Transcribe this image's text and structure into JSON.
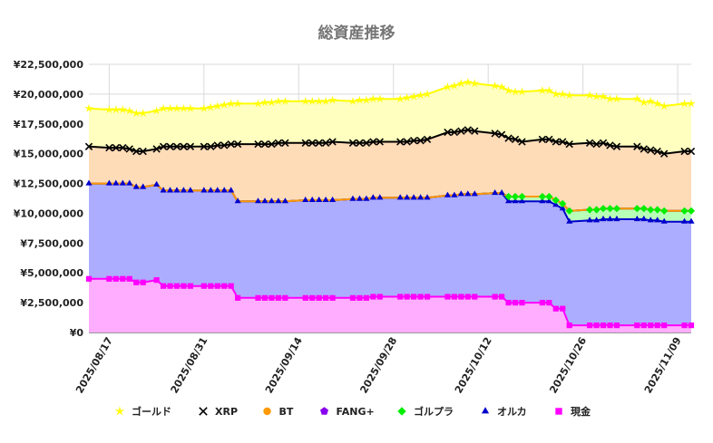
{
  "chart_data": {
    "type": "area",
    "title": "総資産推移",
    "xlabel": "",
    "ylabel": "",
    "ylim": [
      0,
      22500000
    ],
    "yticks": [
      0,
      2500000,
      5000000,
      7500000,
      10000000,
      12500000,
      15000000,
      17500000,
      20000000,
      22500000
    ],
    "ytick_labels": [
      "¥0",
      "¥2,500,000",
      "¥5,000,000",
      "¥7,500,000",
      "¥10,000,000",
      "¥12,500,000",
      "¥15,000,000",
      "¥17,500,000",
      "¥20,000,000",
      "¥22,500,000"
    ],
    "x_start": "2025/08/14",
    "x_end": "2025/11/11",
    "xtick_dates": [
      "2025/08/17",
      "2025/08/31",
      "2025/09/14",
      "2025/09/28",
      "2025/10/12",
      "2025/10/26",
      "2025/11/09"
    ],
    "grid": true,
    "stacked": true,
    "legend_position": "bottom",
    "dates": [
      "2025/08/14",
      "2025/08/17",
      "2025/08/18",
      "2025/08/19",
      "2025/08/20",
      "2025/08/21",
      "2025/08/22",
      "2025/08/24",
      "2025/08/25",
      "2025/08/26",
      "2025/08/27",
      "2025/08/28",
      "2025/08/29",
      "2025/08/31",
      "2025/09/01",
      "2025/09/02",
      "2025/09/03",
      "2025/09/04",
      "2025/09/05",
      "2025/09/08",
      "2025/09/09",
      "2025/09/10",
      "2025/09/11",
      "2025/09/12",
      "2025/09/15",
      "2025/09/16",
      "2025/09/17",
      "2025/09/18",
      "2025/09/19",
      "2025/09/22",
      "2025/09/23",
      "2025/09/24",
      "2025/09/25",
      "2025/09/26",
      "2025/09/29",
      "2025/09/30",
      "2025/10/01",
      "2025/10/02",
      "2025/10/03",
      "2025/10/06",
      "2025/10/07",
      "2025/10/08",
      "2025/10/09",
      "2025/10/10",
      "2025/10/13",
      "2025/10/14",
      "2025/10/15",
      "2025/10/16",
      "2025/10/17",
      "2025/10/20",
      "2025/10/21",
      "2025/10/22",
      "2025/10/23",
      "2025/10/24",
      "2025/10/27",
      "2025/10/28",
      "2025/10/29",
      "2025/10/30",
      "2025/10/31",
      "2025/11/03",
      "2025/11/04",
      "2025/11/05",
      "2025/11/06",
      "2025/11/07",
      "2025/11/10",
      "2025/11/11"
    ],
    "series": [
      {
        "name": "現金",
        "color": "#ff00ff",
        "fill": "#ffadff",
        "marker": "square",
        "values": [
          4500000,
          4500000,
          4500000,
          4500000,
          4500000,
          4200000,
          4200000,
          4400000,
          3900000,
          3900000,
          3900000,
          3900000,
          3900000,
          3900000,
          3900000,
          3900000,
          3900000,
          3900000,
          2900000,
          2900000,
          2900000,
          2900000,
          2900000,
          2900000,
          2900000,
          2900000,
          2900000,
          2900000,
          2900000,
          2900000,
          2900000,
          2900000,
          3000000,
          3000000,
          3000000,
          3000000,
          3000000,
          3000000,
          3000000,
          3000000,
          3000000,
          3000000,
          3000000,
          3000000,
          3000000,
          3000000,
          2500000,
          2500000,
          2500000,
          2500000,
          2500000,
          2000000,
          2000000,
          600000,
          600000,
          600000,
          600000,
          600000,
          600000,
          600000,
          600000,
          600000,
          600000,
          600000,
          600000,
          600000
        ]
      },
      {
        "name": "オルカ",
        "color": "#0000cc",
        "fill": "#adadff",
        "marker": "triangle",
        "values": [
          8000000,
          8000000,
          8000000,
          8000000,
          8000000,
          8000000,
          8000000,
          8000000,
          8000000,
          8000000,
          8000000,
          8000000,
          8000000,
          8000000,
          8000000,
          8000000,
          8000000,
          8000000,
          8100000,
          8100000,
          8100000,
          8100000,
          8100000,
          8100000,
          8200000,
          8200000,
          8200000,
          8200000,
          8200000,
          8300000,
          8300000,
          8300000,
          8300000,
          8300000,
          8300000,
          8300000,
          8300000,
          8300000,
          8300000,
          8500000,
          8500000,
          8600000,
          8600000,
          8600000,
          8700000,
          8700000,
          8500000,
          8500000,
          8500000,
          8500000,
          8500000,
          8700000,
          8400000,
          8700000,
          8800000,
          8800000,
          8900000,
          8900000,
          8900000,
          8900000,
          8900000,
          8800000,
          8800000,
          8700000,
          8700000,
          8700000
        ]
      },
      {
        "name": "ゴルプラ",
        "color": "#00ee00",
        "fill": "#b8ffb8",
        "marker": "diamond",
        "values": [
          0,
          0,
          0,
          0,
          0,
          0,
          0,
          0,
          0,
          0,
          0,
          0,
          0,
          0,
          0,
          0,
          0,
          0,
          0,
          0,
          0,
          0,
          0,
          0,
          0,
          0,
          0,
          0,
          0,
          0,
          0,
          0,
          0,
          0,
          0,
          0,
          0,
          0,
          0,
          0,
          0,
          0,
          0,
          0,
          0,
          0,
          400000,
          400000,
          400000,
          400000,
          400000,
          400000,
          400000,
          900000,
          900000,
          900000,
          900000,
          900000,
          900000,
          900000,
          900000,
          900000,
          900000,
          900000,
          900000,
          900000
        ]
      },
      {
        "name": "FANG+",
        "color": "#8800ee",
        "fill": "#e8adff",
        "marker": "pentagon",
        "values": [
          0,
          0,
          0,
          0,
          0,
          0,
          0,
          0,
          0,
          0,
          0,
          0,
          0,
          0,
          0,
          0,
          0,
          0,
          0,
          0,
          0,
          0,
          0,
          0,
          0,
          0,
          0,
          0,
          0,
          0,
          0,
          0,
          0,
          0,
          0,
          0,
          0,
          0,
          0,
          0,
          0,
          0,
          0,
          0,
          0,
          0,
          0,
          0,
          0,
          0,
          0,
          0,
          0,
          0,
          0,
          0,
          0,
          0,
          0,
          0,
          0,
          0,
          0,
          0,
          0,
          0
        ]
      },
      {
        "name": "BT",
        "color": "#ff9900",
        "fill": "#ffdcb8",
        "marker": "circle",
        "values": [
          0,
          0,
          0,
          0,
          0,
          0,
          0,
          0,
          0,
          0,
          0,
          0,
          0,
          0,
          0,
          0,
          0,
          0,
          0,
          0,
          0,
          0,
          0,
          0,
          0,
          0,
          0,
          0,
          0,
          0,
          0,
          0,
          0,
          0,
          0,
          0,
          0,
          0,
          0,
          0,
          0,
          0,
          0,
          0,
          0,
          0,
          0,
          0,
          0,
          0,
          0,
          0,
          0,
          0,
          0,
          0,
          0,
          0,
          0,
          0,
          0,
          0,
          0,
          0,
          0,
          0
        ]
      },
      {
        "name": "XRP",
        "color": "#000000",
        "fill": "#ffdcb8",
        "marker": "x",
        "values": [
          3100000,
          3000000,
          3000000,
          3000000,
          2900000,
          3000000,
          3000000,
          3000000,
          3700000,
          3700000,
          3700000,
          3700000,
          3700000,
          3700000,
          3700000,
          3800000,
          3800000,
          3900000,
          4800000,
          4800000,
          4800000,
          4800000,
          4900000,
          4900000,
          4800000,
          4800000,
          4800000,
          4800000,
          4900000,
          4700000,
          4700000,
          4700000,
          4700000,
          4700000,
          4700000,
          4700000,
          4800000,
          4800000,
          4900000,
          5300000,
          5300000,
          5300000,
          5400000,
          5300000,
          5000000,
          4900000,
          4900000,
          4800000,
          4600000,
          4800000,
          4800000,
          4900000,
          5200000,
          5600000,
          5600000,
          5500000,
          5500000,
          5300000,
          5200000,
          5200000,
          5000000,
          5000000,
          4900000,
          4800000,
          5000000,
          5000000
        ]
      },
      {
        "name": "ゴールド",
        "color": "#ffff00",
        "fill": "#ffffbf",
        "marker": "star",
        "values": [
          3200000,
          3200000,
          3200000,
          3200000,
          3200000,
          3200000,
          3200000,
          3200000,
          3200000,
          3200000,
          3200000,
          3200000,
          3200000,
          3200000,
          3300000,
          3300000,
          3400000,
          3400000,
          3400000,
          3400000,
          3500000,
          3500000,
          3500000,
          3500000,
          3500000,
          3500000,
          3500000,
          3500000,
          3500000,
          3500000,
          3600000,
          3600000,
          3600000,
          3600000,
          3600000,
          3700000,
          3700000,
          3800000,
          3800000,
          3800000,
          3900000,
          4000000,
          4000000,
          4000000,
          4000000,
          4000000,
          4000000,
          4000000,
          4200000,
          4100000,
          4100000,
          4000000,
          4000000,
          4100000,
          4000000,
          4000000,
          3900000,
          3900000,
          4000000,
          4000000,
          3900000,
          4100000,
          4000000,
          4000000,
          4000000,
          4000000
        ]
      }
    ],
    "legend": [
      {
        "name": "ゴールド",
        "marker": "star",
        "color": "#ffff00"
      },
      {
        "name": "XRP",
        "marker": "x",
        "color": "#000000"
      },
      {
        "name": "BT",
        "marker": "circle",
        "color": "#ff9900"
      },
      {
        "name": "FANG+",
        "marker": "pentagon",
        "color": "#8800ee"
      },
      {
        "name": "ゴルプラ",
        "marker": "diamond",
        "color": "#00ee00"
      },
      {
        "name": "オルカ",
        "marker": "triangle",
        "color": "#0000cc"
      },
      {
        "name": "現金",
        "marker": "square",
        "color": "#ff00ff"
      }
    ]
  }
}
